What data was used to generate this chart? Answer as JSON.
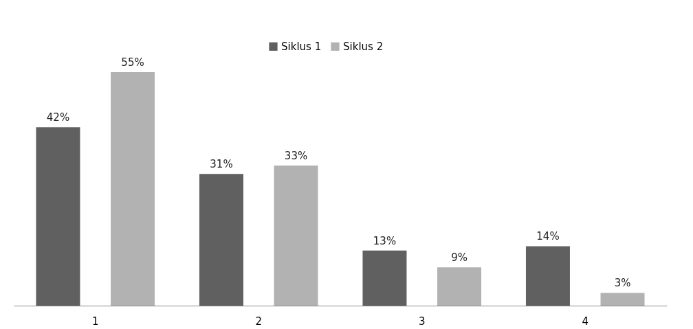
{
  "chart_data": {
    "type": "bar",
    "categories": [
      "1",
      "2",
      "3",
      "4"
    ],
    "series": [
      {
        "name": "Siklus 1",
        "color": "#606060",
        "values": [
          42,
          31,
          13,
          14
        ],
        "value_labels": [
          "42%",
          "31%",
          "13%",
          "14%"
        ]
      },
      {
        "name": "Siklus 2",
        "color": "#b2b2b2",
        "values": [
          55,
          33,
          9,
          3
        ],
        "value_labels": [
          "55%",
          "33%",
          "9%",
          "3%"
        ]
      }
    ],
    "legend": "top",
    "grid": false
  }
}
